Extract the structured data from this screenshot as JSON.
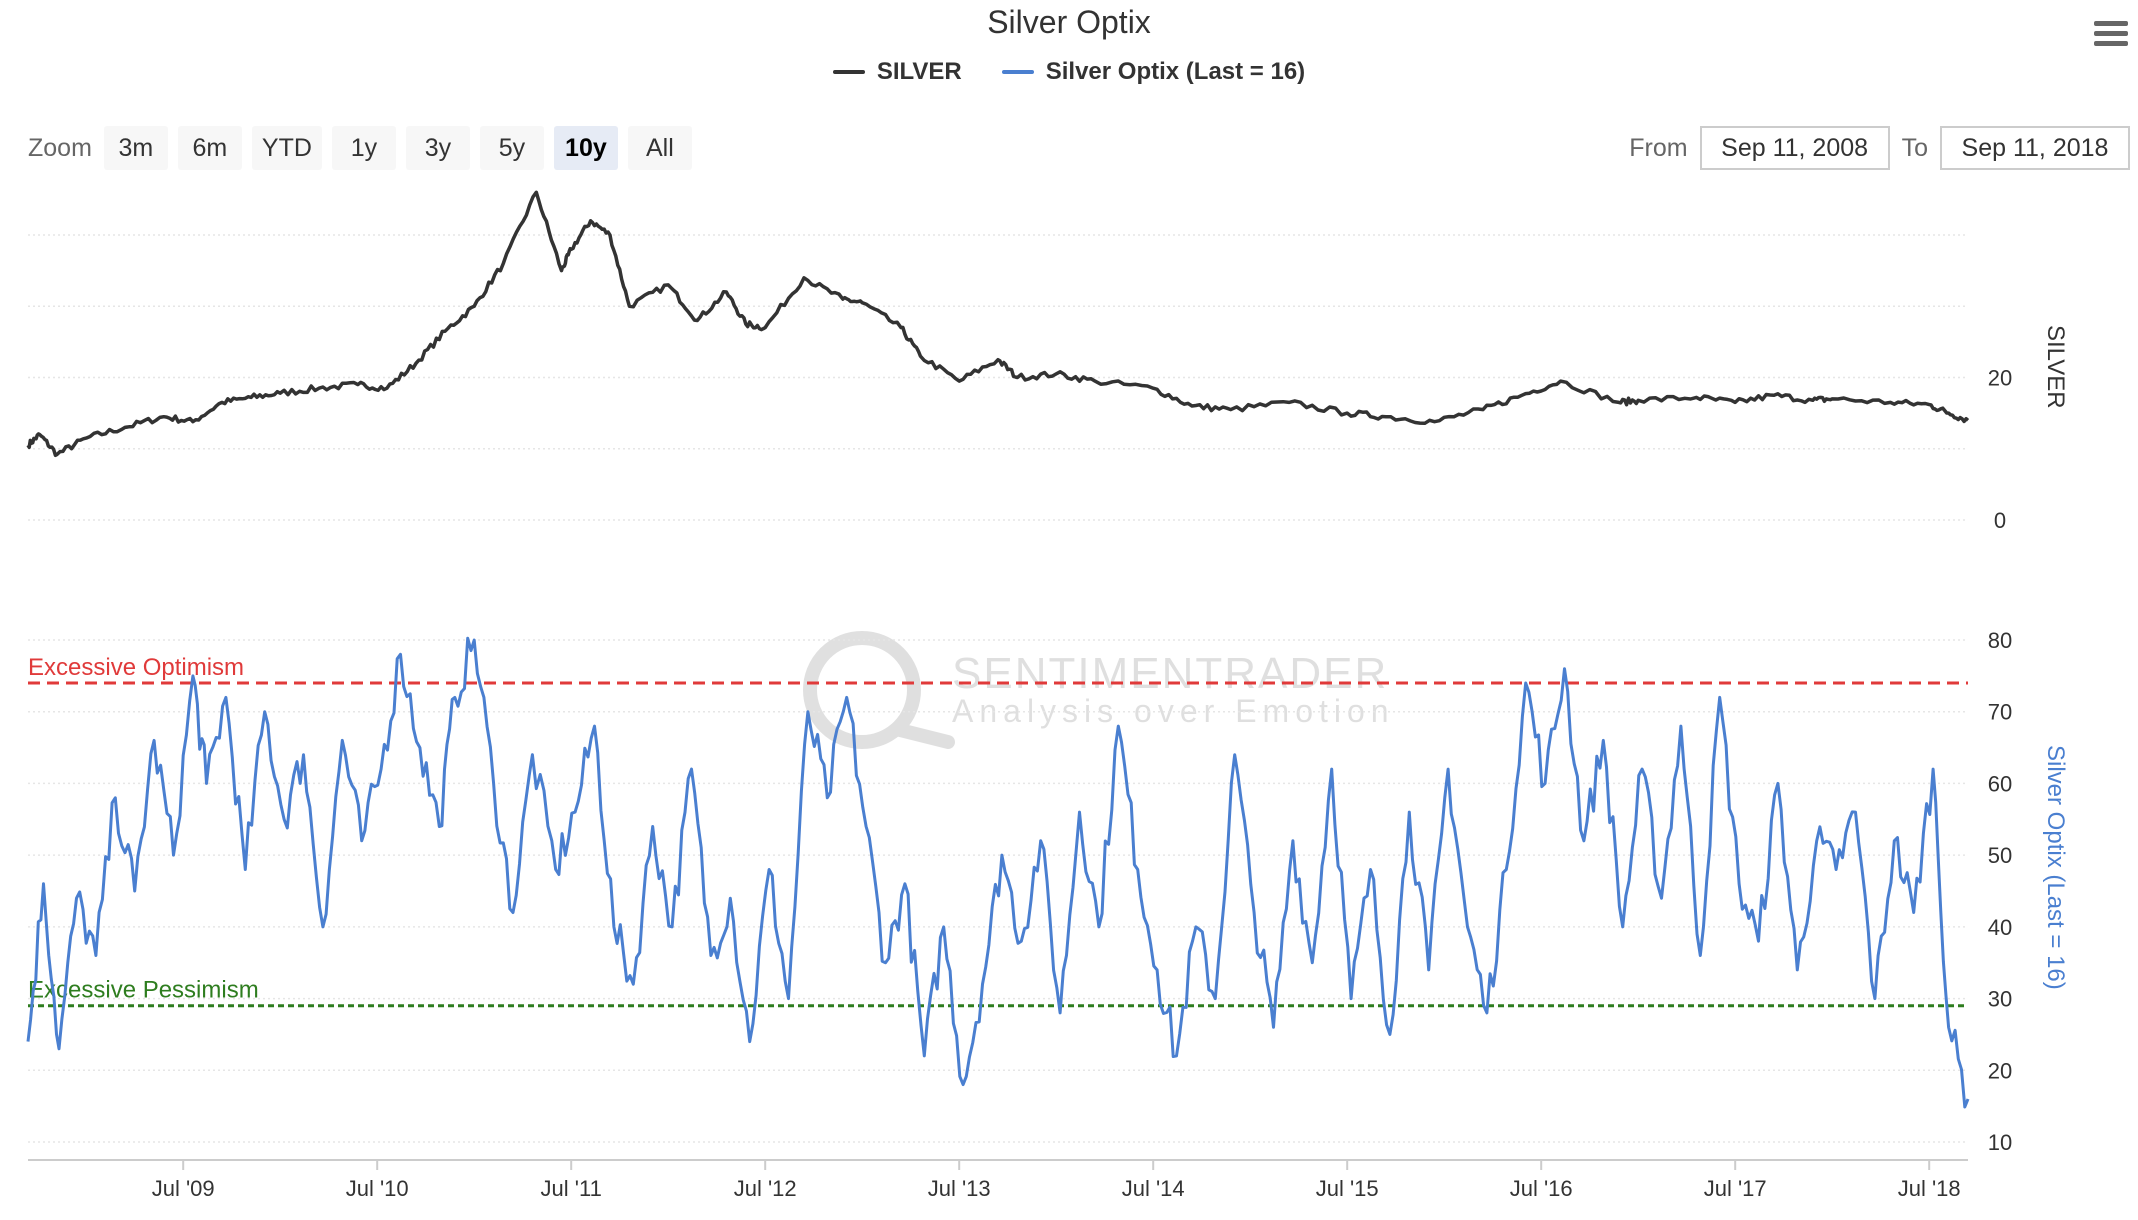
{
  "title": "Silver Optix",
  "legend": {
    "items": [
      {
        "label": "SILVER",
        "color": "#333333"
      },
      {
        "label": "Silver Optix (Last = 16)",
        "color": "#4a7fd0"
      }
    ]
  },
  "zoom": {
    "label": "Zoom",
    "buttons": [
      "3m",
      "6m",
      "YTD",
      "1y",
      "3y",
      "5y",
      "10y",
      "All"
    ],
    "active": "10y"
  },
  "range": {
    "from_label": "From",
    "from_value": "Sep 11, 2008",
    "to_label": "To",
    "to_value": "Sep 11, 2018"
  },
  "watermark": {
    "line1": "SENTIMENTRADER",
    "line2": "Analysis over Emotion"
  },
  "chart_data": [
    {
      "type": "line",
      "series": [
        {
          "name": "SILVER",
          "color": "#333333"
        }
      ],
      "ylabel": "SILVER",
      "ylim": [
        0,
        48
      ],
      "yticks": [
        0,
        20
      ],
      "x": [
        2008.7,
        2008.76,
        2008.85,
        2009.0,
        2009.2,
        2009.4,
        2009.55,
        2009.7,
        2009.85,
        2010.0,
        2010.2,
        2010.4,
        2010.55,
        2010.7,
        2010.85,
        2011.0,
        2011.15,
        2011.32,
        2011.45,
        2011.5,
        2011.6,
        2011.7,
        2011.8,
        2012.0,
        2012.15,
        2012.3,
        2012.4,
        2012.5,
        2012.7,
        2012.9,
        2013.0,
        2013.2,
        2013.3,
        2013.5,
        2013.7,
        2013.8,
        2014.0,
        2014.2,
        2014.5,
        2014.7,
        2014.9,
        2015.2,
        2015.5,
        2015.7,
        2015.95,
        2016.2,
        2016.4,
        2016.6,
        2016.9,
        2017.0,
        2017.3,
        2017.5,
        2017.7,
        2017.9,
        2018.0,
        2018.3,
        2018.5,
        2018.6,
        2018.7
      ],
      "values": [
        10.5,
        12.0,
        9.2,
        11.5,
        13.0,
        14.5,
        13.8,
        16.5,
        17.2,
        17.8,
        18.5,
        19.0,
        18.5,
        22.0,
        26.5,
        30.0,
        36.0,
        46.0,
        35.0,
        38.0,
        42.0,
        40.0,
        30.0,
        33.0,
        28.0,
        32.0,
        27.5,
        27.0,
        34.0,
        31.0,
        30.5,
        27.0,
        23.0,
        19.5,
        22.5,
        20.0,
        20.5,
        19.5,
        18.5,
        16.0,
        15.5,
        16.5,
        15.0,
        14.5,
        13.8,
        15.5,
        17.5,
        19.5,
        16.5,
        16.8,
        17.2,
        16.5,
        17.5,
        16.8,
        17.0,
        16.5,
        16.2,
        15.0,
        14.0
      ]
    },
    {
      "type": "line",
      "series": [
        {
          "name": "Silver Optix (Last = 16)",
          "color": "#4a7fd0"
        }
      ],
      "ylabel": "Silver Optix (Last = 16)",
      "ylim": [
        10,
        80
      ],
      "yticks": [
        10,
        20,
        30,
        40,
        50,
        60,
        70,
        80
      ],
      "x": [
        2008.7,
        2008.78,
        2008.86,
        2008.95,
        2009.05,
        2009.15,
        2009.25,
        2009.35,
        2009.45,
        2009.55,
        2009.62,
        2009.72,
        2009.82,
        2009.92,
        2010.02,
        2010.12,
        2010.22,
        2010.32,
        2010.42,
        2010.52,
        2010.62,
        2010.72,
        2010.82,
        2010.9,
        2011.0,
        2011.1,
        2011.2,
        2011.3,
        2011.42,
        2011.52,
        2011.62,
        2011.72,
        2011.82,
        2011.92,
        2012.02,
        2012.12,
        2012.22,
        2012.32,
        2012.42,
        2012.52,
        2012.62,
        2012.72,
        2012.82,
        2012.92,
        2013.02,
        2013.12,
        2013.22,
        2013.32,
        2013.42,
        2013.52,
        2013.62,
        2013.72,
        2013.82,
        2013.92,
        2014.02,
        2014.12,
        2014.22,
        2014.32,
        2014.42,
        2014.52,
        2014.62,
        2014.72,
        2014.82,
        2014.92,
        2015.02,
        2015.12,
        2015.22,
        2015.32,
        2015.42,
        2015.52,
        2015.62,
        2015.72,
        2015.82,
        2015.92,
        2016.02,
        2016.12,
        2016.22,
        2016.32,
        2016.42,
        2016.52,
        2016.62,
        2016.72,
        2016.82,
        2016.92,
        2017.02,
        2017.12,
        2017.22,
        2017.32,
        2017.42,
        2017.52,
        2017.62,
        2017.72,
        2017.82,
        2017.92,
        2018.02,
        2018.12,
        2018.22,
        2018.32,
        2018.42,
        2018.52,
        2018.6,
        2018.7
      ],
      "values": [
        24,
        46,
        23,
        44,
        36,
        58,
        45,
        66,
        50,
        75,
        60,
        72,
        48,
        70,
        55,
        64,
        40,
        66,
        52,
        62,
        78,
        65,
        54,
        72,
        80,
        60,
        42,
        64,
        48,
        56,
        68,
        40,
        32,
        54,
        40,
        62,
        36,
        44,
        24,
        48,
        30,
        70,
        58,
        72,
        54,
        35,
        46,
        22,
        40,
        18,
        32,
        50,
        38,
        52,
        28,
        56,
        40,
        68,
        48,
        34,
        22,
        40,
        30,
        64,
        42,
        26,
        52,
        35,
        62,
        30,
        48,
        25,
        56,
        34,
        62,
        40,
        28,
        48,
        74,
        60,
        76,
        52,
        66,
        40,
        62,
        44,
        68,
        36,
        72,
        46,
        38,
        60,
        34,
        52,
        48,
        56,
        30,
        52,
        42,
        62,
        26,
        16
      ]
    }
  ],
  "x_axis": {
    "ticks": [
      "Jul '09",
      "Jul '10",
      "Jul '11",
      "Jul '12",
      "Jul '13",
      "Jul '14",
      "Jul '15",
      "Jul '16",
      "Jul '17",
      "Jul '18"
    ],
    "tick_values": [
      2009.5,
      2010.5,
      2011.5,
      2012.5,
      2013.5,
      2014.5,
      2015.5,
      2016.5,
      2017.5,
      2018.5
    ],
    "range": [
      2008.7,
      2018.7
    ]
  },
  "thresholds": [
    {
      "label": "Excessive Optimism",
      "value": 74,
      "color": "#e03a3a"
    },
    {
      "label": "Excessive Pessimism",
      "value": 29,
      "color": "#2e7d1f"
    }
  ]
}
